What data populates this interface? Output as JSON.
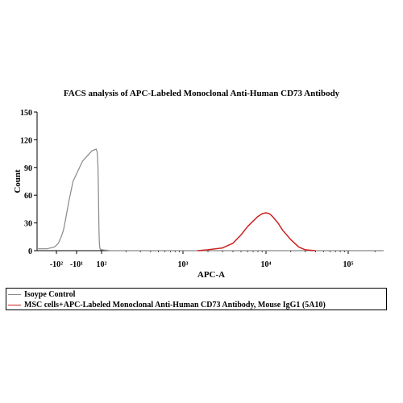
{
  "chart_data": {
    "type": "line",
    "title": "FACS analysis of APC-Labeled Monoclonal Anti-Human CD73 Antibody",
    "xlabel": "APC-A",
    "ylabel": "Count",
    "x_scale": "biexponential",
    "x_tick_labels": [
      "-10²",
      "-10¹",
      "10²",
      "10³",
      "10⁴",
      "10⁵"
    ],
    "x_tick_values": [
      -100,
      -10,
      100,
      1000,
      10000,
      100000
    ],
    "xlim": [
      -260,
      250000
    ],
    "ylim": [
      0,
      150
    ],
    "y_ticks": [
      0,
      30,
      60,
      90,
      120,
      150
    ],
    "grid": false,
    "legend_position": "bottom",
    "series": [
      {
        "name": "Isoype Control",
        "color": "#888888",
        "x": [
          -260,
          -160,
          -110,
          -80,
          -60,
          -45,
          -35,
          -25,
          -15,
          -5,
          5,
          15,
          22,
          28,
          33,
          37,
          40,
          45,
          52,
          60,
          70,
          85,
          100,
          130,
          1000,
          10000,
          100000,
          250000
        ],
        "y": [
          2,
          2,
          4,
          8,
          14,
          22,
          34,
          52,
          75,
          97,
          108,
          110,
          106,
          90,
          65,
          40,
          22,
          10,
          4,
          2,
          1,
          1,
          1,
          0,
          0,
          0,
          0,
          0
        ]
      },
      {
        "name": "MSC cells+APC-Labeled Monoclonal Anti-Human CD73 Antibody, Mouse IgG1 (5A10)",
        "color": "#cc2222",
        "x": [
          1500,
          2000,
          3000,
          4000,
          5000,
          6000,
          7000,
          8000,
          9000,
          10000,
          11000,
          12000,
          14000,
          16000,
          20000,
          25000,
          30000,
          40000
        ],
        "y": [
          0,
          1,
          3,
          8,
          17,
          26,
          32,
          37,
          40,
          41,
          40,
          37,
          30,
          22,
          12,
          4,
          1,
          0
        ]
      }
    ]
  }
}
